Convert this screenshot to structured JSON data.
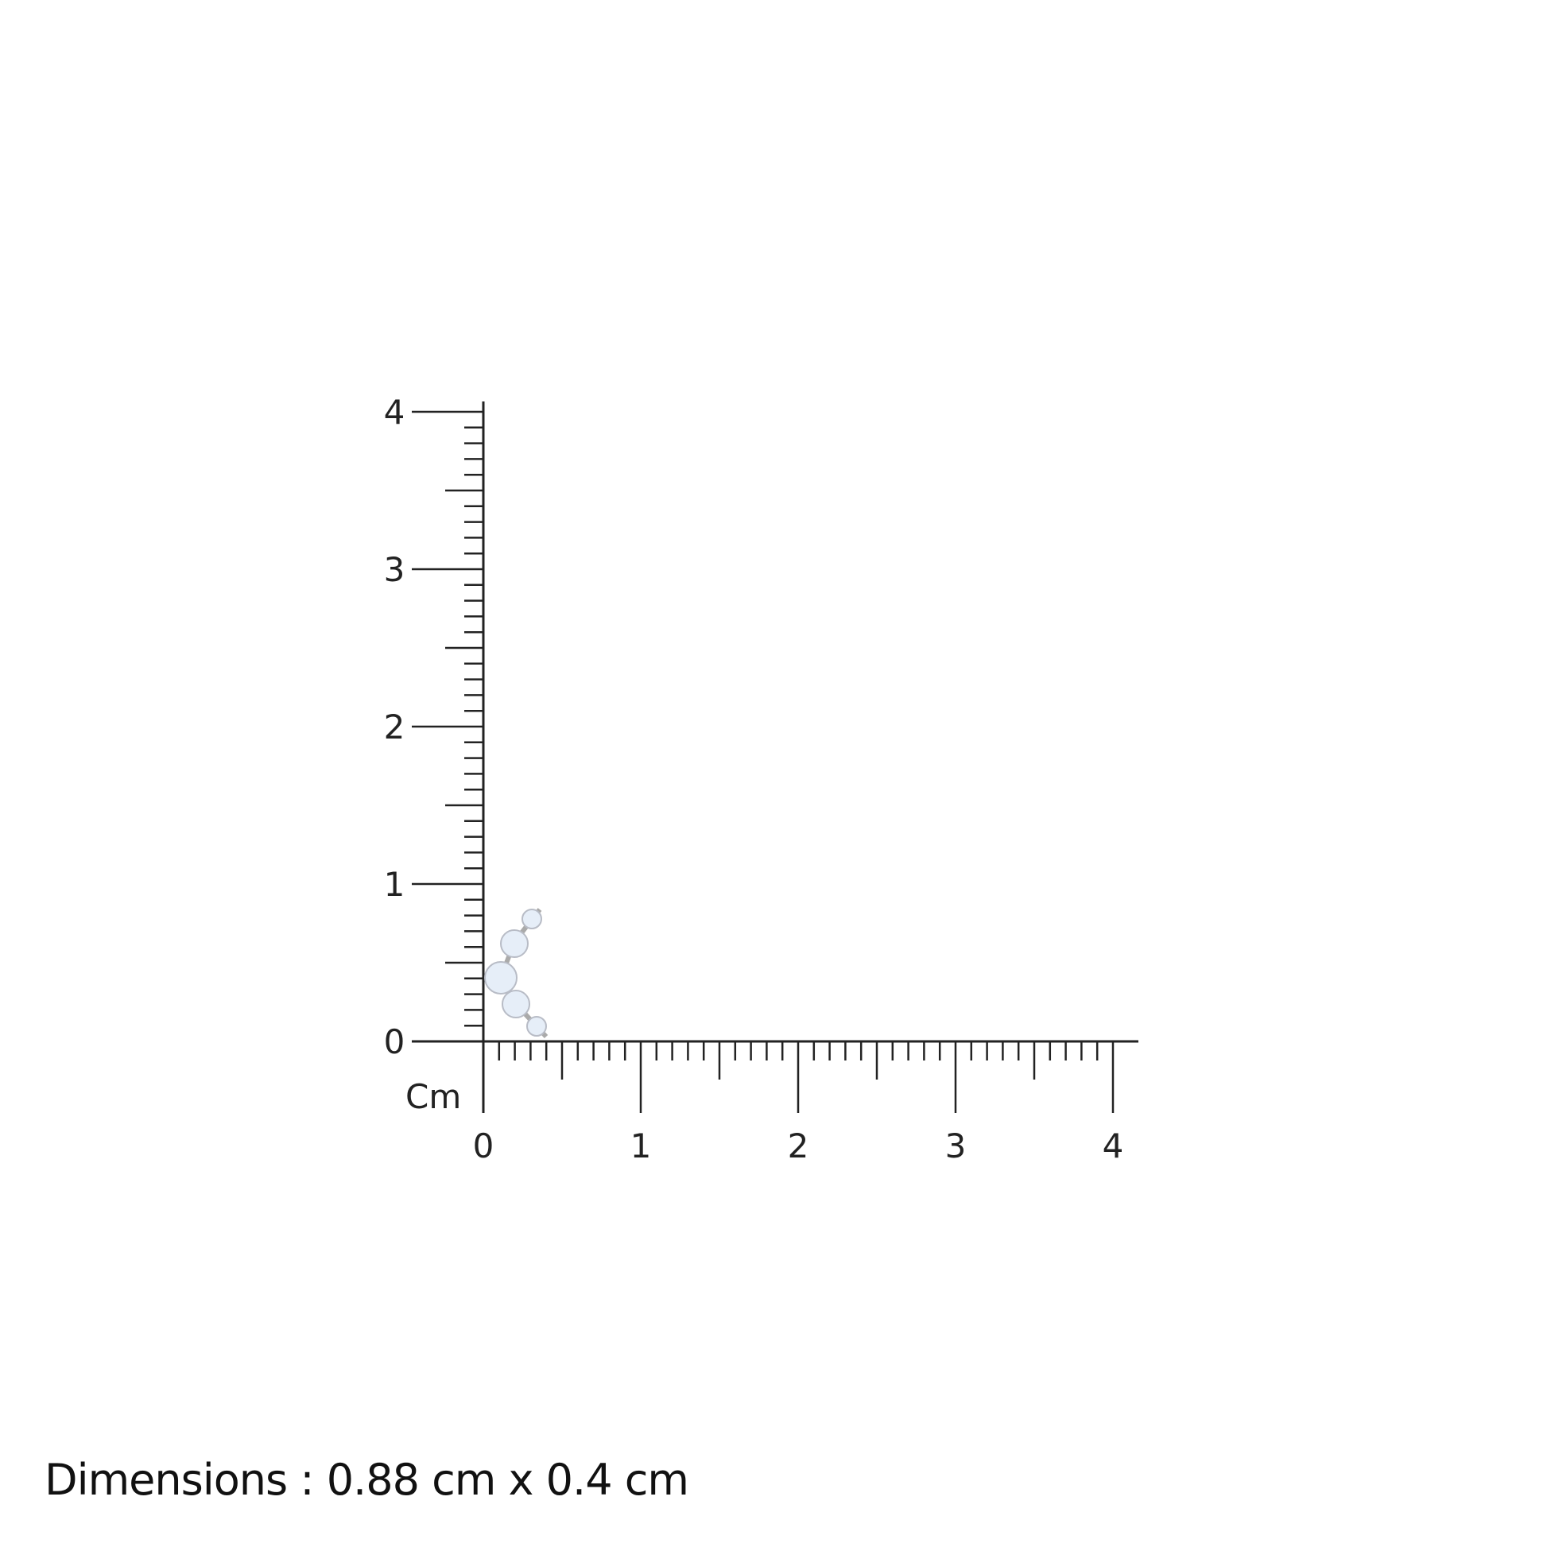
{
  "ruler": {
    "unit_label": "Cm",
    "x_ticks": [
      "0",
      "1",
      "2",
      "3",
      "4"
    ],
    "y_ticks": [
      "0",
      "1",
      "2",
      "3",
      "4"
    ],
    "range_cm": [
      0,
      4
    ],
    "minor_step_cm": 0.1,
    "line_color": "#222222"
  },
  "product": {
    "type_icon": "five-stone-curved-earring",
    "metal_color": "#c8c8cc",
    "stone_color": "#e6eef8"
  },
  "caption": "Dimensions : 0.88 cm x 0.4 cm"
}
